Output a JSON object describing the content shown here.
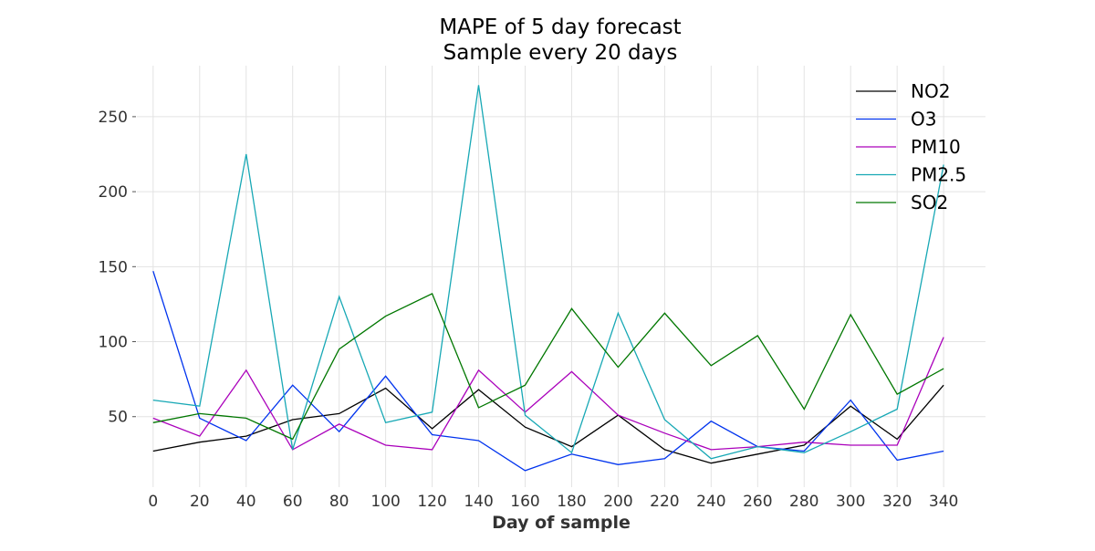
{
  "chart_data": {
    "type": "line",
    "title": "MAPE of 5 day forecast",
    "subtitle": "Sample every 20 days",
    "xlabel": "Day of sample",
    "ylabel": "",
    "x": [
      0,
      20,
      40,
      60,
      80,
      100,
      120,
      140,
      160,
      180,
      200,
      220,
      240,
      260,
      280,
      300,
      320,
      340
    ],
    "xticks": [
      "0",
      "20",
      "40",
      "60",
      "80",
      "100",
      "120",
      "140",
      "160",
      "180",
      "200",
      "220",
      "240",
      "260",
      "280",
      "300",
      "320",
      "340"
    ],
    "yticks": [
      50,
      100,
      150,
      200,
      250
    ],
    "ytick_labels": [
      "50",
      "100",
      "150",
      "200",
      "250"
    ],
    "xlim": [
      -7,
      358
    ],
    "ylim": [
      3,
      284
    ],
    "grid": true,
    "legend_position": "top-right",
    "series": [
      {
        "name": "NO2",
        "color": "#000000",
        "values": [
          27,
          33,
          37,
          48,
          52,
          69,
          42,
          68,
          43,
          30,
          51,
          28,
          19,
          25,
          31,
          57,
          35,
          71
        ]
      },
      {
        "name": "O3",
        "color": "#0033ee",
        "values": [
          147,
          49,
          34,
          71,
          40,
          77,
          38,
          34,
          14,
          25,
          18,
          22,
          47,
          30,
          27,
          61,
          21,
          27
        ]
      },
      {
        "name": "PM10",
        "color": "#aa00bb",
        "values": [
          49,
          37,
          81,
          28,
          45,
          31,
          28,
          81,
          53,
          80,
          51,
          39,
          28,
          30,
          33,
          31,
          31,
          103
        ]
      },
      {
        "name": "PM2.5",
        "color": "#17a8b5",
        "values": [
          61,
          57,
          225,
          28,
          130,
          46,
          53,
          271,
          51,
          26,
          119,
          48,
          22,
          30,
          26,
          40,
          55,
          218
        ]
      },
      {
        "name": "SO2",
        "color": "#007700",
        "values": [
          46,
          52,
          49,
          35,
          95,
          117,
          132,
          56,
          71,
          122,
          83,
          119,
          84,
          104,
          55,
          118,
          65,
          82
        ]
      }
    ]
  }
}
